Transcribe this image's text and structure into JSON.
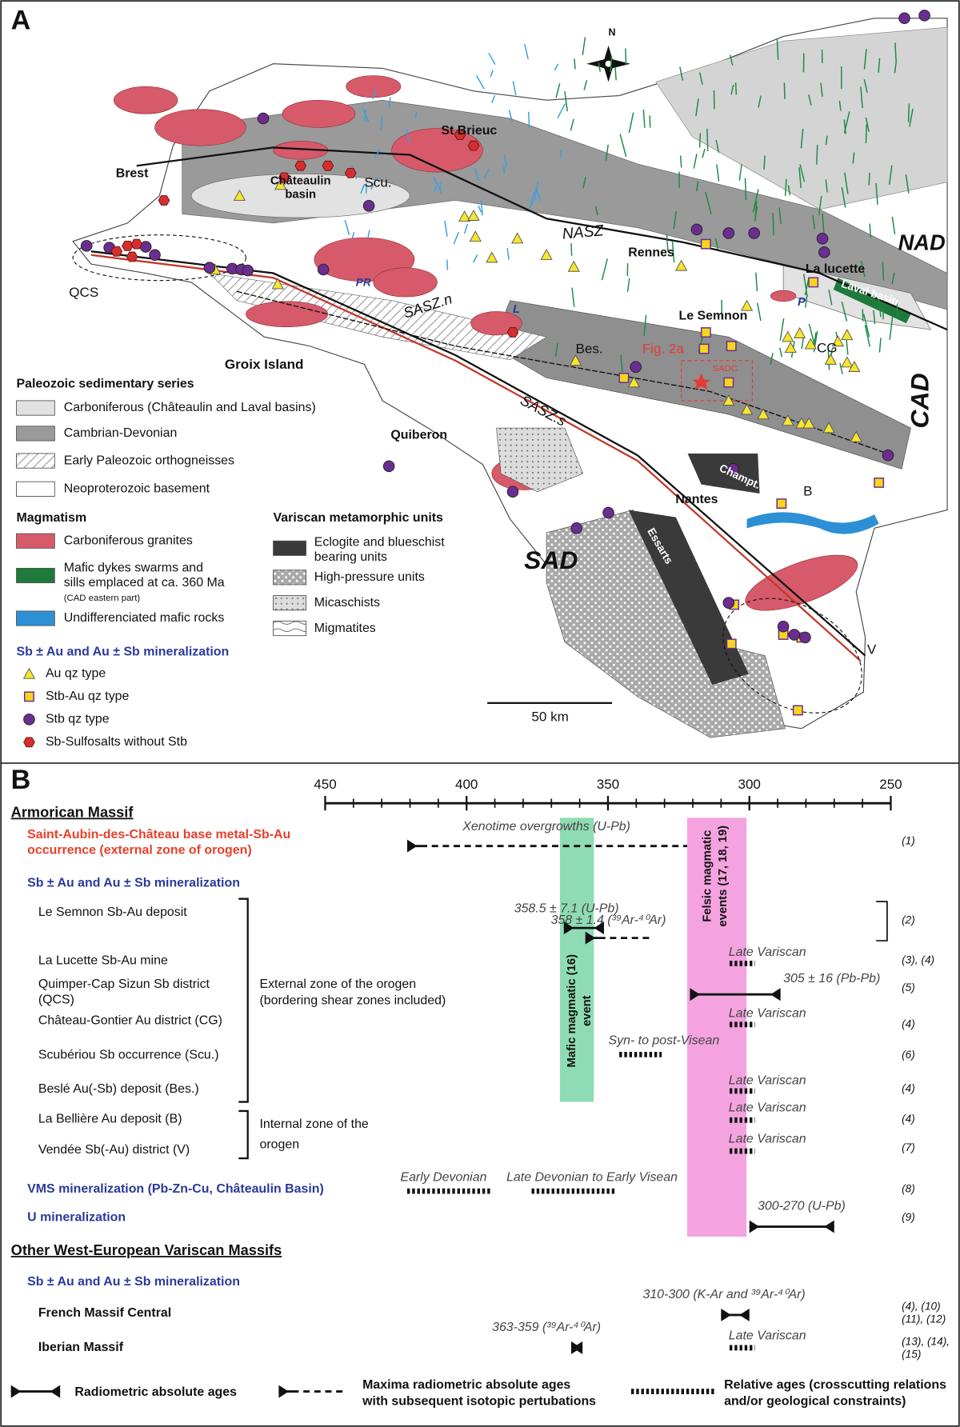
{
  "panel_a": {
    "label": "A",
    "north": "N",
    "scale_bar": "50 km",
    "places": [
      "St Brieuc",
      "Brest",
      [
        "Châteaulin",
        "basin"
      ],
      "Scu.",
      "NASZ",
      "Rennes",
      "NAD",
      "La lucette",
      "Laval basin",
      "QCS",
      "PR",
      "SASZ.n",
      "L",
      "P",
      "Le Semnon",
      "CG",
      "Bes.",
      "Fig. 2a",
      "SADC",
      "CAD",
      "Groix Island",
      "SASZ.s",
      "Quiberon",
      "Champt.",
      "Nantes",
      "B",
      "SAD",
      "Essarts",
      "V"
    ],
    "legend": {
      "sedimentary": {
        "title": "Paleozoic sedimentary series",
        "items": [
          "Carboniferous (Châteaulin and Laval basins)",
          "Cambrian-Devonian",
          "Early Paleozoic orthogneisses",
          "Neoproterozoic basement"
        ]
      },
      "magmatism": {
        "title": "Magmatism",
        "items": [
          "Carboniferous granites",
          [
            "Mafic dykes swarms and",
            "sills emplaced at ca. 360 Ma"
          ],
          "Undifferenciated mafic rocks"
        ],
        "note": "(CAD eastern part)"
      },
      "metamorphic": {
        "title": "Variscan metamorphic units",
        "items": [
          [
            "Eclogite and blueschist",
            "bearing units"
          ],
          "High-pressure units",
          "Micaschists",
          "Migmatites"
        ]
      },
      "mineralization": {
        "title": "Sb ± Au and Au ± Sb mineralization",
        "items": [
          "Au qz type",
          "Stb-Au qz type",
          "Stb qz type",
          "Sb-Sulfosalts without Stb"
        ]
      }
    }
  },
  "panel_b": {
    "label": "B",
    "xlim": [
      450,
      250
    ],
    "xticks": [
      450,
      400,
      350,
      300,
      250
    ],
    "minor_ticks": [
      440,
      430,
      420,
      410,
      390,
      380,
      370,
      360,
      340,
      330,
      320,
      310,
      290,
      280,
      270,
      260
    ],
    "events": [
      {
        "name": [
          "Mafic magmatic (16)",
          "event"
        ],
        "range": [
          367,
          355
        ],
        "color": "#8fdcb4"
      },
      {
        "name": [
          "Felsic magmatic",
          "events (17, 18, 19)"
        ],
        "range": [
          322,
          301
        ],
        "color": "#f4a3e0"
      }
    ],
    "rows": [
      {
        "label": "Armorican Massif",
        "style": "heading"
      },
      {
        "label": [
          "Saint-Aubin-des-Château base metal-Sb-Au",
          "occurrence (external zone of orogen)"
        ],
        "style": "red",
        "ages": [
          {
            "kind": "maxima",
            "range": [
              421,
              322
            ],
            "label": "Xenotime overgrowths (U-Pb)"
          }
        ],
        "ref": "(1)"
      },
      {
        "label": "Sb ± Au and Au ± Sb mineralization",
        "style": "blue"
      },
      {
        "label": "Le Semnon Sb-Au deposit",
        "style": "plain",
        "ages": [
          {
            "kind": "absolute",
            "range": [
              365.6,
              351.4
            ],
            "label": "358.5 ± 7.1 (U-Pb)"
          },
          {
            "kind": "maxima",
            "range": [
              358,
              335
            ],
            "label": "358 ± 1.4 (³⁹Ar-⁴⁰Ar)"
          }
        ],
        "ref": "(2)"
      },
      {
        "label": "La Lucette Sb-Au mine",
        "style": "plain",
        "ages": [
          {
            "kind": "relative",
            "range": [
              307,
              298
            ],
            "label": "Late Variscan"
          }
        ],
        "ref": "(3), (4)"
      },
      {
        "label": [
          "Quimper-Cap Sizun Sb district",
          "(QCS)"
        ],
        "style": "plain",
        "ages": [
          {
            "kind": "absolute",
            "range": [
              321,
              289
            ],
            "label": "305 ± 16 (Pb-Pb)"
          }
        ],
        "ref": "(5)"
      },
      {
        "label": "Château-Gontier Au district (CG)",
        "style": "plain",
        "ages": [
          {
            "kind": "relative",
            "range": [
              307,
              298
            ],
            "label": "Late Variscan"
          }
        ],
        "ref": "(4)"
      },
      {
        "label": "Scubériou Sb occurrence (Scu.)",
        "style": "plain",
        "ages": [
          {
            "kind": "relative",
            "range": [
              346,
              331
            ],
            "label": "Syn- to post-Visean"
          }
        ],
        "ref": "(6)"
      },
      {
        "label": "Beslé Au(-Sb) deposit (Bes.)",
        "style": "plain",
        "ages": [
          {
            "kind": "relative",
            "range": [
              307,
              298
            ],
            "label": "Late Variscan"
          }
        ],
        "ref": "(4)"
      },
      {
        "label": "La Bellière Au deposit (B)",
        "style": "plain",
        "ages": [
          {
            "kind": "relative",
            "range": [
              307,
              298
            ],
            "label": "Late Variscan"
          }
        ],
        "ref": "(4)"
      },
      {
        "label": "Vendée Sb(-Au) district (V)",
        "style": "plain",
        "ages": [
          {
            "kind": "relative",
            "range": [
              307,
              298
            ],
            "label": "Late Variscan"
          }
        ],
        "ref": "(7)"
      },
      {
        "label": "VMS mineralization (Pb-Zn-Cu, Châteaulin Basin)",
        "style": "blue",
        "ages": [
          {
            "kind": "relative",
            "range": [
              421,
              391
            ],
            "label": "Early Devonian"
          },
          {
            "kind": "relative",
            "range": [
              377,
              347
            ],
            "label": "Late Devonian to Early Visean"
          }
        ],
        "ref": "(8)"
      },
      {
        "label": "U mineralization",
        "style": "blue",
        "ages": [
          {
            "kind": "absolute",
            "range": [
              300,
              270
            ],
            "label": "300-270 (U-Pb)"
          }
        ],
        "ref": "(9)"
      },
      {
        "label": "Other West-European Variscan Massifs",
        "style": "heading"
      },
      {
        "label": "Sb ± Au and Au ± Sb mineralization",
        "style": "blue"
      },
      {
        "label": "French Massif Central",
        "style": "bold",
        "ages": [
          {
            "kind": "absolute",
            "range": [
              310,
              300
            ],
            "label": "310-300 (K-Ar and ³⁹Ar-⁴⁰Ar)"
          }
        ],
        "ref": [
          "(4), (10)",
          "(11), (12)"
        ]
      },
      {
        "label": "Iberian Massif",
        "style": "bold",
        "ages": [
          {
            "kind": "absolute",
            "range": [
              363,
              359
            ],
            "label": "363-359 (³⁹Ar-⁴⁰Ar)"
          },
          {
            "kind": "relative",
            "range": [
              307,
              298
            ],
            "label": "Late Variscan"
          }
        ],
        "ref": [
          "(13), (14),",
          "(15)"
        ]
      }
    ],
    "zones": [
      [
        "External zone of the orogen",
        "(bordering shear zones included)"
      ],
      [
        "Internal zone of the",
        "orogen"
      ]
    ],
    "legend": [
      "Radiometric absolute ages",
      [
        "Maxima radiometric absolute ages",
        "with subsequent isotopic pertubations"
      ],
      [
        "Relative ages (crosscutting relations",
        "and/or geological constraints)"
      ]
    ]
  }
}
